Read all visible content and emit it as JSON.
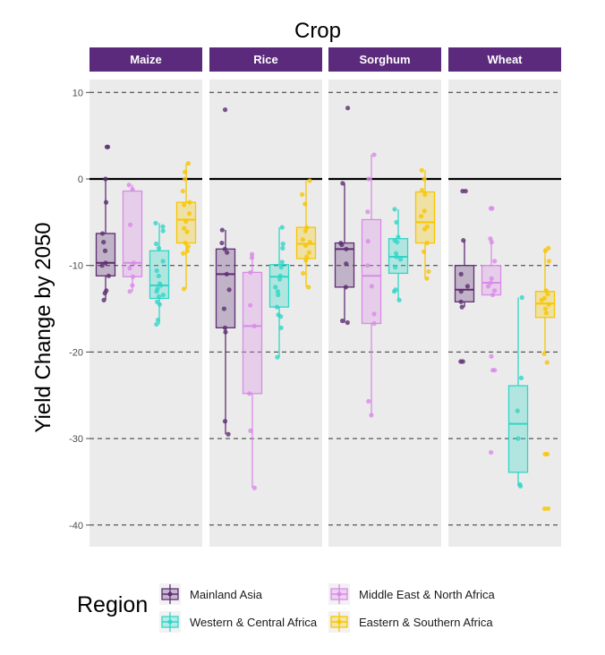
{
  "chart_data": {
    "type": "box",
    "title": "Crop",
    "ylabel": "Yield Change by 2050",
    "xlabel": "",
    "ylim": [
      -42.5,
      11.5
    ],
    "yticks": [
      10,
      0,
      -10,
      -20,
      -30,
      -40
    ],
    "grid": "dashed horizontal at major ticks; solid reference line at 0",
    "facets": [
      "Maize",
      "Rice",
      "Sorghum",
      "Wheat"
    ],
    "strip_color": "#5b2a7c",
    "panel_background": "#ebebeb",
    "legend": {
      "title": "Region",
      "placement": "bottom",
      "entries": [
        "Mainland Asia",
        "Middle East & North Africa",
        "Western & Central Africa",
        "Eastern & Southern Africa"
      ]
    },
    "series": [
      {
        "name": "Mainland Asia",
        "color": "#5e2d73"
      },
      {
        "name": "Middle East & North Africa",
        "color": "#d98ae8"
      },
      {
        "name": "Western & Central Africa",
        "color": "#2fd6c8"
      },
      {
        "name": "Eastern & Southern Africa",
        "color": "#f7c600"
      }
    ],
    "boxes": {
      "Maize": [
        {
          "q1": -11.2,
          "median": -9.7,
          "q3": -6.3,
          "lower": -14.0,
          "upper": 0.0,
          "outliers": [
            3.7,
            3.7
          ],
          "points": [
            0.0,
            -2.7,
            -6.3,
            -7.3,
            -8.3,
            -9.7,
            -10.0,
            -11.2,
            -12.9,
            -13.2,
            -14.0,
            3.7,
            3.7
          ]
        },
        {
          "q1": -11.3,
          "median": -9.7,
          "q3": -1.4,
          "lower": -13.0,
          "upper": -0.7,
          "outliers": [],
          "points": [
            -0.7,
            -1.2,
            -5.3,
            -9.7,
            -10.3,
            -11.3,
            -12.3,
            -13.0
          ]
        },
        {
          "q1": -13.8,
          "median": -12.3,
          "q3": -8.3,
          "lower": -16.8,
          "upper": -5.1,
          "outliers": [],
          "points": [
            -5.1,
            -5.5,
            -6.0,
            -7.5,
            -8.0,
            -9.5,
            -10.6,
            -11.2,
            -12.1,
            -12.3,
            -12.7,
            -13.0,
            -13.4,
            -13.6,
            -14.2,
            -14.5,
            -16.3,
            -16.8
          ]
        },
        {
          "q1": -7.4,
          "median": -4.7,
          "q3": -2.7,
          "lower": -12.7,
          "upper": 1.8,
          "outliers": [],
          "points": [
            1.8,
            0.8,
            0.0,
            -1.4,
            -2.7,
            -3.0,
            -4.0,
            -4.9,
            -5.7,
            -6.1,
            -7.4,
            -7.8,
            -8.3,
            -8.6,
            -12.7
          ]
        }
      ],
      "Rice": [
        {
          "q1": -17.2,
          "median": -11.0,
          "q3": -8.1,
          "lower": -29.5,
          "upper": -5.9,
          "outliers": [
            8.0
          ],
          "points": [
            8.0,
            -5.9,
            -7.4,
            -8.1,
            -8.5,
            -11.0,
            -12.8,
            -15.0,
            -17.2,
            -17.7,
            -28.0,
            -29.5
          ]
        },
        {
          "q1": -24.8,
          "median": -17.0,
          "q3": -10.8,
          "lower": -35.7,
          "upper": -8.7,
          "outliers": [],
          "points": [
            -8.7,
            -9.1,
            -10.8,
            -14.6,
            -17.0,
            -24.8,
            -29.1,
            -35.7
          ]
        },
        {
          "q1": -14.8,
          "median": -11.3,
          "q3": -9.9,
          "lower": -20.6,
          "upper": -5.6,
          "outliers": [],
          "points": [
            -5.6,
            -7.5,
            -8.0,
            -9.6,
            -10.2,
            -11.2,
            -11.6,
            -12.5,
            -13.0,
            -13.4,
            -14.8,
            -15.7,
            -15.9,
            -17.2,
            -20.6
          ]
        },
        {
          "q1": -9.2,
          "median": -7.5,
          "q3": -5.6,
          "lower": -12.5,
          "upper": -0.2,
          "outliers": [],
          "points": [
            -0.2,
            -1.8,
            -2.9,
            -5.6,
            -6.0,
            -7.0,
            -7.3,
            -7.7,
            -8.5,
            -9.0,
            -9.4,
            -10.9,
            -12.5
          ]
        }
      ],
      "Sorghum": [
        {
          "q1": -12.5,
          "median": -8.1,
          "q3": -7.4,
          "lower": -16.6,
          "upper": -0.5,
          "outliers": [
            8.2
          ],
          "points": [
            8.2,
            -0.5,
            -7.4,
            -7.6,
            -8.1,
            -9.8,
            -12.5,
            -16.6,
            -16.4
          ]
        },
        {
          "q1": -16.7,
          "median": -11.2,
          "q3": -4.7,
          "lower": -27.3,
          "upper": 2.8,
          "outliers": [],
          "points": [
            2.8,
            0.0,
            -3.8,
            -7.2,
            -10.0,
            -12.4,
            -15.6,
            -16.7,
            -25.7,
            -27.3
          ]
        },
        {
          "q1": -10.9,
          "median": -9.0,
          "q3": -6.9,
          "lower": -14.0,
          "upper": -3.5,
          "outliers": [],
          "points": [
            -3.5,
            -5.0,
            -6.7,
            -7.1,
            -7.3,
            -8.6,
            -9.0,
            -9.3,
            -10.2,
            -12.8,
            -13.0,
            -14.0
          ]
        },
        {
          "q1": -7.4,
          "median": -5.0,
          "q3": -1.5,
          "lower": -11.5,
          "upper": 1.0,
          "outliers": [],
          "points": [
            1.0,
            0.0,
            -1.3,
            -1.8,
            -3.7,
            -4.3,
            -5.5,
            -5.8,
            -7.4,
            -8.4,
            -10.7,
            -11.5
          ]
        }
      ],
      "Wheat": [
        {
          "q1": -14.2,
          "median": -12.8,
          "q3": -10.0,
          "lower": -14.8,
          "upper": -7.1,
          "outliers": [
            -1.4,
            -1.4,
            -21.1,
            -21.1
          ],
          "points": [
            -1.4,
            -1.4,
            -7.1,
            -11.0,
            -12.4,
            -13.0,
            -14.2,
            -14.8,
            -21.1,
            -21.1
          ]
        },
        {
          "q1": -13.4,
          "median": -12.0,
          "q3": -10.0,
          "lower": -13.4,
          "upper": -6.9,
          "outliers": [
            -3.4,
            -3.4,
            -20.5,
            -22.1,
            -22.1,
            -31.6
          ],
          "points": [
            -3.4,
            -3.4,
            -6.9,
            -7.3,
            -9.5,
            -11.5,
            -12.0,
            -12.4,
            -12.9,
            -13.4,
            -20.5,
            -22.1,
            -22.1,
            -31.6
          ]
        },
        {
          "q1": -33.9,
          "median": -28.3,
          "q3": -23.9,
          "lower": -35.5,
          "upper": -13.7,
          "outliers": [],
          "points": [
            -13.7,
            -23.0,
            -26.8,
            -30.0,
            -35.3,
            -35.5
          ]
        },
        {
          "q1": -16.0,
          "median": -14.4,
          "q3": -13.0,
          "lower": -20.2,
          "upper": -8.0,
          "outliers": [
            -21.2,
            -31.8,
            -31.8,
            -38.1,
            -38.1
          ],
          "points": [
            -8.0,
            -8.3,
            -9.5,
            -12.9,
            -13.3,
            -13.8,
            -14.0,
            -14.5,
            -15.0,
            -15.5,
            -20.2,
            -21.2,
            -31.8,
            -31.8,
            -38.1,
            -38.1
          ]
        }
      ]
    }
  }
}
